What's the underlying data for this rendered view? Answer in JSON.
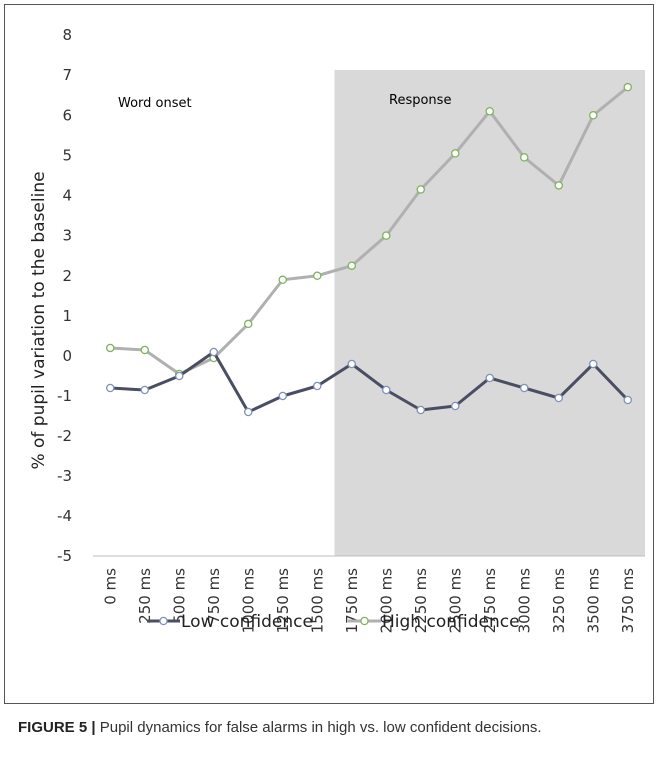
{
  "chart_data": {
    "type": "line",
    "title": "",
    "xlabel": "",
    "ylabel": "% of pupil variation to the baseline",
    "ylim": [
      -5,
      8
    ],
    "y_ticks": [
      "-5",
      "-4",
      "-3",
      "-2",
      "-1",
      "0",
      "1",
      "2",
      "3",
      "4",
      "5",
      "6",
      "7",
      "8"
    ],
    "grid": false,
    "legend_position": "bottom",
    "categories": [
      "0 ms",
      "250 ms",
      "500 ms",
      "750 ms",
      "1000 ms",
      "1250 ms",
      "1500 ms",
      "1750 ms",
      "2000 ms",
      "2250 ms",
      "2500 ms",
      "2750 ms",
      "3000 ms",
      "3250 ms",
      "3500 ms",
      "3750 ms"
    ],
    "series": [
      {
        "name": "Low confidence",
        "color": "#4a4e63",
        "marker_color": "#7f8fbf",
        "values": [
          -0.8,
          -0.85,
          -0.5,
          0.1,
          -1.4,
          -1.0,
          -0.75,
          -0.2,
          -0.85,
          -1.35,
          -1.25,
          -0.55,
          -0.8,
          -1.05,
          -0.2,
          -1.1
        ]
      },
      {
        "name": "High confidence",
        "color": "#b0b0b0",
        "marker_color": "#7fb35a",
        "values": [
          0.2,
          0.15,
          -0.45,
          -0.05,
          0.8,
          1.9,
          2.0,
          2.25,
          3.0,
          4.15,
          5.05,
          6.1,
          4.95,
          4.25,
          6.0,
          6.7
        ]
      }
    ],
    "shaded_region": {
      "from_category": "1750 ms",
      "to_category": "3750 ms",
      "color": "#d9d9d9"
    },
    "annotations": [
      "Word onset",
      "Response"
    ]
  },
  "caption": {
    "label": "FIGURE 5",
    "separator": "|",
    "text": "Pupil dynamics for false alarms in high vs. low confident decisions."
  }
}
